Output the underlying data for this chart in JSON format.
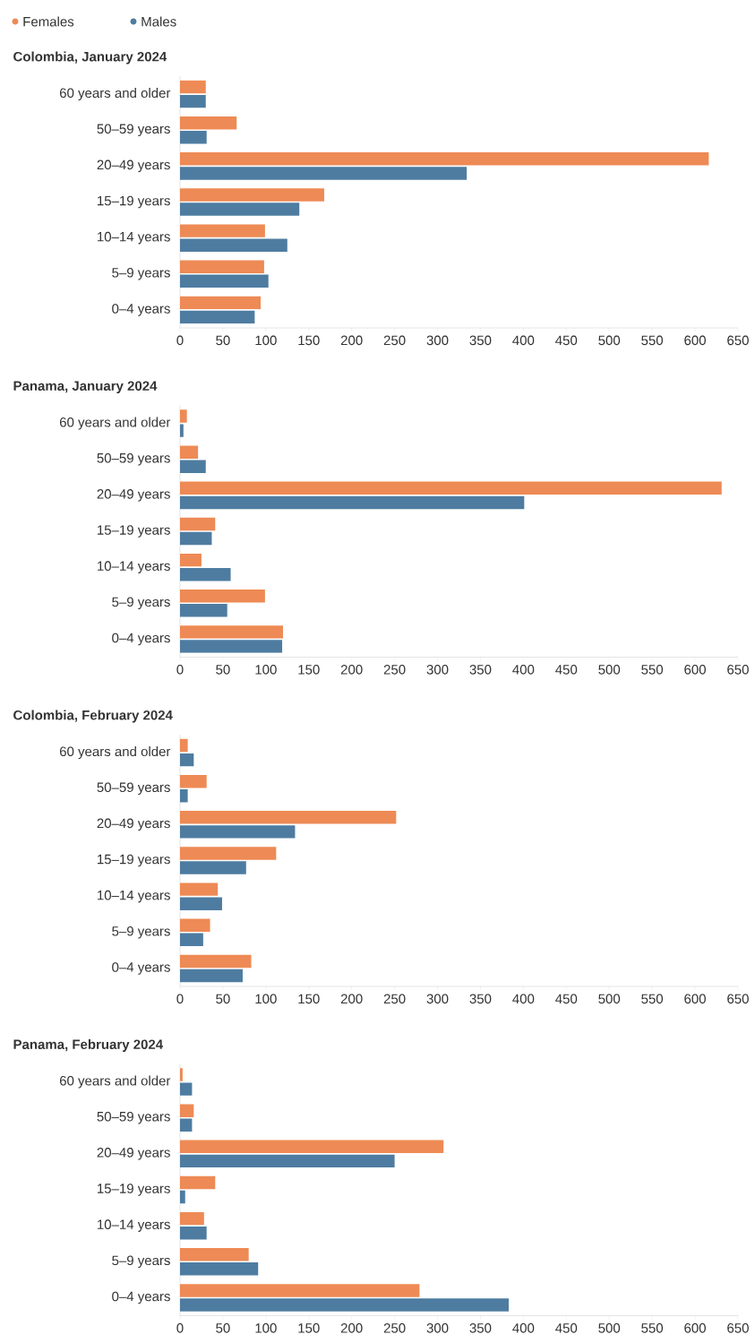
{
  "chart_data": [
    {
      "type": "bar",
      "orientation": "horizontal",
      "title": "Colombia, January 2024",
      "legend": "top left",
      "categories": [
        "60 years and older",
        "50–59 years",
        "20–49 years",
        "15–19 years",
        "10–14 years",
        "5–9 years",
        "0–4 years"
      ],
      "series": [
        {
          "name": "Females",
          "color": "#ee8a55",
          "values": [
            30,
            66,
            616,
            168,
            99,
            98,
            94
          ]
        },
        {
          "name": "Males",
          "color": "#4e7ca1",
          "values": [
            30,
            31,
            334,
            139,
            125,
            103,
            87
          ]
        }
      ],
      "xlim": [
        0,
        650
      ],
      "xticks": [
        0,
        50,
        100,
        150,
        200,
        250,
        300,
        350,
        400,
        450,
        500,
        550,
        600,
        650
      ]
    },
    {
      "type": "bar",
      "orientation": "horizontal",
      "title": "Panama, January 2024",
      "categories": [
        "60 years and older",
        "50–59 years",
        "20–49 years",
        "15–19 years",
        "10–14 years",
        "5–9 years",
        "0–4 years"
      ],
      "series": [
        {
          "color": "#ee8a55",
          "values": [
            8,
            21,
            631,
            41,
            25,
            99,
            120
          ]
        },
        {
          "color": "#4e7ca1",
          "values": [
            4,
            30,
            401,
            37,
            59,
            55,
            119
          ]
        }
      ],
      "xlim": [
        0,
        650
      ],
      "xticks": [
        0,
        50,
        100,
        150,
        200,
        250,
        300,
        350,
        400,
        450,
        500,
        550,
        600,
        650
      ]
    },
    {
      "type": "bar",
      "orientation": "horizontal",
      "title": "Colombia, February 2024",
      "categories": [
        "60 years and older",
        "50–59 years",
        "20–49 years",
        "15–19 years",
        "10–14 years",
        "5–9 years",
        "0–4 years"
      ],
      "series": [
        {
          "color": "#ee8a55",
          "values": [
            9,
            31,
            252,
            112,
            44,
            35,
            83
          ]
        },
        {
          "color": "#4e7ca1",
          "values": [
            16,
            9,
            134,
            77,
            49,
            27,
            73
          ]
        }
      ],
      "xlim": [
        0,
        650
      ],
      "xticks": [
        0,
        50,
        100,
        150,
        200,
        250,
        300,
        350,
        400,
        450,
        500,
        550,
        600,
        650
      ]
    },
    {
      "type": "bar",
      "orientation": "horizontal",
      "title": "Panama, February 2024",
      "categories": [
        "60 years and older",
        "50–59 years",
        "20–49 years",
        "15–19 years",
        "10–14 years",
        "5–9 years",
        "0–4 years"
      ],
      "series": [
        {
          "color": "#ee8a55",
          "values": [
            3,
            16,
            307,
            41,
            28,
            80,
            279
          ]
        },
        {
          "color": "#4e7ca1",
          "values": [
            14,
            14,
            250,
            6,
            31,
            91,
            383
          ]
        }
      ],
      "xlim": [
        0,
        650
      ],
      "xticks": [
        0,
        50,
        100,
        150,
        200,
        250,
        300,
        350,
        400,
        450,
        500,
        550,
        600,
        650
      ]
    }
  ]
}
